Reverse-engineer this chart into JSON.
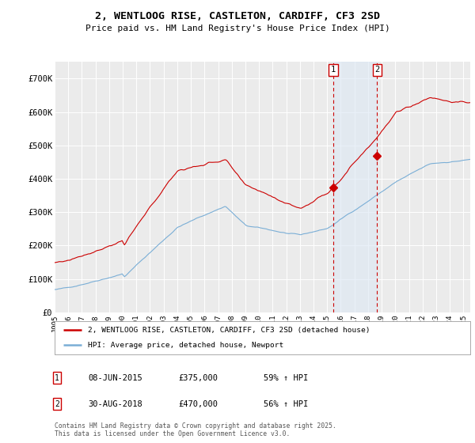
{
  "title": "2, WENTLOOG RISE, CASTLETON, CARDIFF, CF3 2SD",
  "subtitle": "Price paid vs. HM Land Registry's House Price Index (HPI)",
  "ylim": [
    0,
    750000
  ],
  "yticks": [
    0,
    100000,
    200000,
    300000,
    400000,
    500000,
    600000,
    700000
  ],
  "ytick_labels": [
    "£0",
    "£100K",
    "£200K",
    "£300K",
    "£400K",
    "£500K",
    "£600K",
    "£700K"
  ],
  "background_color": "#ffffff",
  "plot_bg_color": "#ebebeb",
  "grid_color": "#ffffff",
  "sale1_date": 2015.44,
  "sale1_price": 375000,
  "sale1_label": "1",
  "sale2_date": 2018.66,
  "sale2_price": 470000,
  "sale2_label": "2",
  "red_line_color": "#cc0000",
  "blue_line_color": "#7aaed6",
  "legend1": "2, WENTLOOG RISE, CASTLETON, CARDIFF, CF3 2SD (detached house)",
  "legend2": "HPI: Average price, detached house, Newport",
  "annotation1_date": "08-JUN-2015",
  "annotation1_price": "£375,000",
  "annotation1_hpi": "59% ↑ HPI",
  "annotation2_date": "30-AUG-2018",
  "annotation2_price": "£470,000",
  "annotation2_hpi": "56% ↑ HPI",
  "footer": "Contains HM Land Registry data © Crown copyright and database right 2025.\nThis data is licensed under the Open Government Licence v3.0.",
  "xmin": 1995.0,
  "xmax": 2025.5
}
